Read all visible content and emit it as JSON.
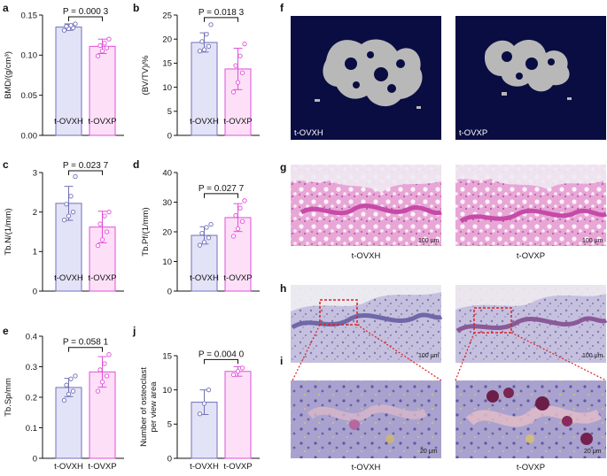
{
  "panel_labels": {
    "a": "a",
    "b": "b",
    "c": "c",
    "d": "d",
    "e": "e",
    "f": "f",
    "g": "g",
    "h": "h",
    "i": "i",
    "j": "j"
  },
  "colors": {
    "group1_fill": "#e3e3f8",
    "group1_edge": "#7070b8",
    "group2_fill": "#fde0f8",
    "group2_edge": "#e050d8",
    "microct_bg": "#0a0d42",
    "bone": "#b8b8b8",
    "he": "#e49ad0",
    "trap": "#b9b2d8"
  },
  "chart_data": [
    {
      "id": "a",
      "type": "bar",
      "categories": [
        "t-OVXH",
        "t-OVXP"
      ],
      "values": [
        0.135,
        0.111
      ],
      "errors": [
        0.004,
        0.009
      ],
      "points": [
        [
          0.131,
          0.133,
          0.134,
          0.136,
          0.137,
          0.139
        ],
        [
          0.099,
          0.105,
          0.109,
          0.112,
          0.115,
          0.12
        ]
      ],
      "ylabel": "BMD/(g/cm³)",
      "ylim": [
        0,
        0.15
      ],
      "ticks": [
        0,
        0.05,
        0.1,
        0.15
      ],
      "tick_labels": [
        "0.00",
        "0.05",
        "0.10",
        "0.15"
      ],
      "p_label": "P = 0.000 3"
    },
    {
      "id": "b",
      "type": "bar",
      "categories": [
        "t-OVXH",
        "t-OVXP"
      ],
      "values": [
        19.3,
        13.8
      ],
      "errors": [
        2.0,
        4.3
      ],
      "points": [
        [
          17.5,
          17.8,
          18.5,
          19.5,
          21,
          23
        ],
        [
          9,
          11,
          13,
          14.5,
          16.5,
          19
        ]
      ],
      "ylabel": "(BV/TV)/%",
      "ylim": [
        0,
        25
      ],
      "ticks": [
        0,
        5,
        10,
        15,
        20,
        25
      ],
      "tick_labels": [
        "0",
        "5",
        "10",
        "15",
        "20",
        "25"
      ],
      "p_label": "P = 0.018 3"
    },
    {
      "id": "c",
      "type": "bar",
      "categories": [
        "t-OVXH",
        "t-OVXP"
      ],
      "values": [
        2.22,
        1.62
      ],
      "errors": [
        0.43,
        0.4
      ],
      "points": [
        [
          1.8,
          1.9,
          2.0,
          2.2,
          2.4,
          2.9
        ],
        [
          1.15,
          1.3,
          1.5,
          1.7,
          1.9,
          2.0
        ]
      ],
      "ylabel": "Tb.N/(1/mm)",
      "ylim": [
        0,
        3
      ],
      "ticks": [
        0,
        1,
        2,
        3
      ],
      "tick_labels": [
        "0",
        "1",
        "2",
        "3"
      ],
      "p_label": "P = 0.023 7"
    },
    {
      "id": "d",
      "type": "bar",
      "categories": [
        "t-OVXH",
        "t-OVXP"
      ],
      "values": [
        18.8,
        24.8
      ],
      "errors": [
        2.9,
        4.7
      ],
      "points": [
        [
          15.5,
          16.5,
          18,
          19.5,
          21.5,
          22.5
        ],
        [
          18.5,
          21,
          23.5,
          25.5,
          28,
          30.5
        ]
      ],
      "ylabel": "Tb.Pf/(1/mm)",
      "ylim": [
        0,
        40
      ],
      "ticks": [
        0,
        10,
        20,
        30,
        40
      ],
      "tick_labels": [
        "0",
        "10",
        "20",
        "30",
        "40"
      ],
      "p_label": "P = 0.027 7"
    },
    {
      "id": "e",
      "type": "bar",
      "categories": [
        "t-OVXH",
        "t-OVXP"
      ],
      "values": [
        0.232,
        0.283
      ],
      "errors": [
        0.03,
        0.05
      ],
      "points": [
        [
          0.19,
          0.21,
          0.22,
          0.24,
          0.26,
          0.27
        ],
        [
          0.22,
          0.25,
          0.27,
          0.29,
          0.31,
          0.34
        ]
      ],
      "ylabel": "Tb.Sp/mm",
      "ylim": [
        0,
        0.4
      ],
      "ticks": [
        0,
        0.1,
        0.2,
        0.3,
        0.4
      ],
      "tick_labels": [
        "0",
        "0.1",
        "0.2",
        "0.3",
        "0.4"
      ],
      "p_label": "P = 0.058 1"
    },
    {
      "id": "j",
      "type": "bar",
      "categories": [
        "t-OVXH",
        "t-OVXP"
      ],
      "values": [
        8.2,
        12.7
      ],
      "errors": [
        1.8,
        0.7
      ],
      "points": [
        [
          6.5,
          8.0,
          10.0
        ],
        [
          12.2,
          12.7,
          13.2
        ]
      ],
      "ylabel": "Number of osteoclast|per view area",
      "ylim": [
        0,
        15
      ],
      "ticks": [
        0,
        5,
        10,
        15
      ],
      "tick_labels": [
        "0",
        "5",
        "10",
        "15"
      ],
      "p_label": "P = 0.004 0"
    }
  ],
  "images": {
    "f": {
      "left_label": "t-OVXH",
      "right_label": "t-OVXP"
    },
    "g": {
      "left_caption": "t-OVXH",
      "right_caption": "t-OVXP",
      "scale": "100 μm"
    },
    "h": {
      "scale": "100 μm"
    },
    "i": {
      "left_caption": "t-OVXH",
      "right_caption": "t-OVXP",
      "scale": "20 μm"
    }
  }
}
